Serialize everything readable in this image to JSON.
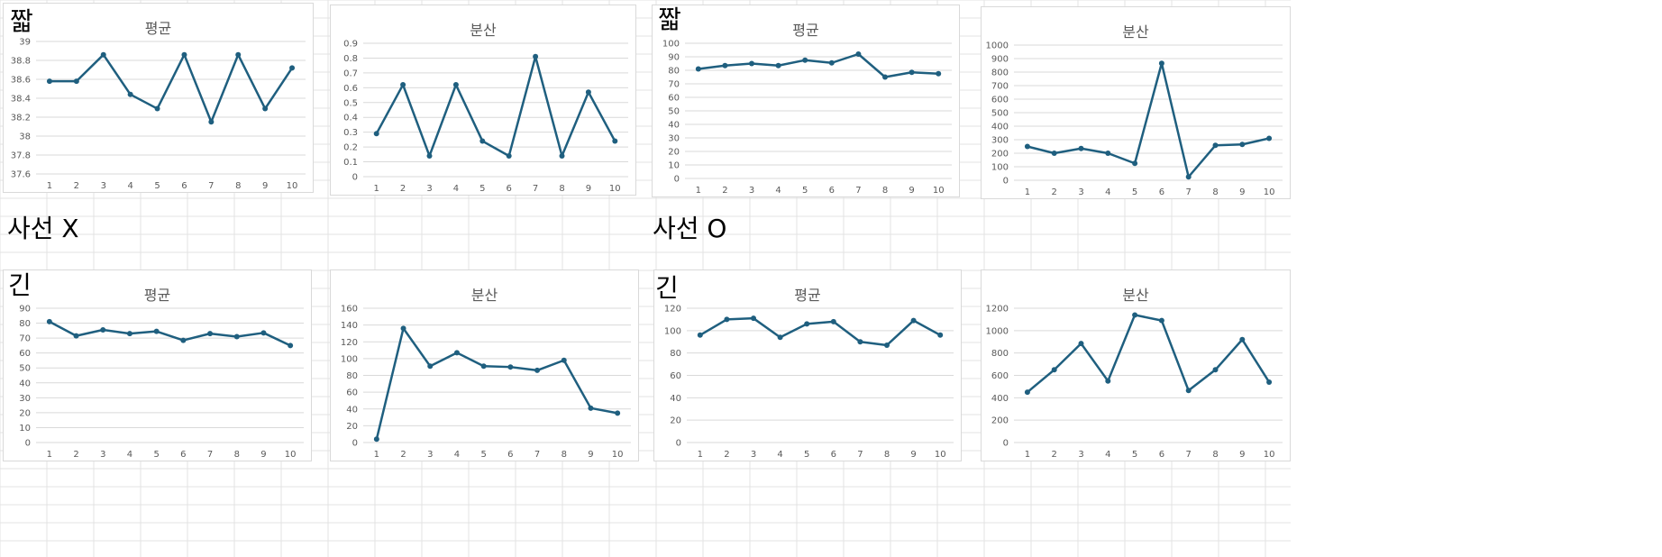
{
  "labels": {
    "short": "짧",
    "long": "긴",
    "no_dict": "사선 X",
    "with_dict": "사선 O"
  },
  "colors": {
    "series": "#1f5f7f",
    "gridline": "#d9d9d9",
    "axis_text": "#595959",
    "sheet_grid": "#e3e3e3"
  },
  "chart_data": [
    {
      "group": "사선 X",
      "length": "짧",
      "type": "line",
      "title": "평균",
      "categories": [
        "1",
        "2",
        "3",
        "4",
        "5",
        "6",
        "7",
        "8",
        "9",
        "10"
      ],
      "values": [
        38.58,
        38.58,
        38.86,
        38.44,
        38.29,
        38.86,
        38.15,
        38.86,
        38.29,
        38.72
      ],
      "ylim": [
        37.6,
        39
      ],
      "yticks": [
        "37.6",
        "37.8",
        "38",
        "38.2",
        "38.4",
        "38.6",
        "38.8",
        "39"
      ],
      "grid": true
    },
    {
      "group": "사선 X",
      "length": "짧",
      "type": "line",
      "title": "분산",
      "categories": [
        "1",
        "2",
        "3",
        "4",
        "5",
        "6",
        "7",
        "8",
        "9",
        "10"
      ],
      "values": [
        0.29,
        0.62,
        0.14,
        0.62,
        0.24,
        0.14,
        0.81,
        0.14,
        0.57,
        0.24
      ],
      "ylim": [
        0,
        0.9
      ],
      "yticks": [
        "0",
        "0.1",
        "0.2",
        "0.3",
        "0.4",
        "0.5",
        "0.6",
        "0.7",
        "0.8",
        "0.9"
      ],
      "grid": true
    },
    {
      "group": "사선 O",
      "length": "짧",
      "type": "line",
      "title": "평균",
      "categories": [
        "1",
        "2",
        "3",
        "4",
        "5",
        "6",
        "7",
        "8",
        "9",
        "10"
      ],
      "values": [
        81,
        83.5,
        85,
        83.5,
        87.5,
        85.5,
        92,
        75,
        78.5,
        77.5
      ],
      "ylim": [
        0,
        100
      ],
      "yticks": [
        "0",
        "10",
        "20",
        "30",
        "40",
        "50",
        "60",
        "70",
        "80",
        "90",
        "100"
      ],
      "grid": true
    },
    {
      "group": "사선 O",
      "length": "짧",
      "type": "line",
      "title": "분산",
      "categories": [
        "1",
        "2",
        "3",
        "4",
        "5",
        "6",
        "7",
        "8",
        "9",
        "10"
      ],
      "values": [
        250,
        200,
        235,
        200,
        125,
        865,
        25,
        258,
        265,
        310
      ],
      "ylim": [
        0,
        1000
      ],
      "yticks": [
        "0",
        "100",
        "200",
        "300",
        "400",
        "500",
        "600",
        "700",
        "800",
        "900",
        "1000"
      ],
      "grid": true
    },
    {
      "group": "사선 X",
      "length": "긴",
      "type": "line",
      "title": "평균",
      "categories": [
        "1",
        "2",
        "3",
        "4",
        "5",
        "6",
        "7",
        "8",
        "9",
        "10"
      ],
      "values": [
        81,
        71.5,
        75.5,
        73,
        74.5,
        68.5,
        73,
        71,
        73.5,
        65
      ],
      "ylim": [
        0,
        90
      ],
      "yticks": [
        "0",
        "10",
        "20",
        "30",
        "40",
        "50",
        "60",
        "70",
        "80",
        "90"
      ],
      "grid": true
    },
    {
      "group": "사선 X",
      "length": "긴",
      "type": "line",
      "title": "분산",
      "categories": [
        "1",
        "2",
        "3",
        "4",
        "5",
        "6",
        "7",
        "8",
        "9",
        "10"
      ],
      "values": [
        4,
        136,
        91,
        107,
        91,
        90,
        86,
        98,
        41,
        35
      ],
      "ylim": [
        0,
        160
      ],
      "yticks": [
        "0",
        "20",
        "40",
        "60",
        "80",
        "100",
        "120",
        "140",
        "160"
      ],
      "grid": true
    },
    {
      "group": "사선 O",
      "length": "긴",
      "type": "line",
      "title": "평균",
      "categories": [
        "1",
        "2",
        "3",
        "4",
        "5",
        "6",
        "7",
        "8",
        "9",
        "10"
      ],
      "values": [
        96,
        110,
        111,
        94,
        106,
        108,
        90,
        87,
        109,
        96
      ],
      "ylim": [
        0,
        120
      ],
      "yticks": [
        "0",
        "20",
        "40",
        "60",
        "80",
        "100",
        "120"
      ],
      "grid": true
    },
    {
      "group": "사선 O",
      "length": "긴",
      "type": "line",
      "title": "분산",
      "categories": [
        "1",
        "2",
        "3",
        "4",
        "5",
        "6",
        "7",
        "8",
        "9",
        "10"
      ],
      "values": [
        450,
        650,
        885,
        550,
        1140,
        1090,
        465,
        650,
        920,
        540
      ],
      "ylim": [
        0,
        1200
      ],
      "yticks": [
        "0",
        "200",
        "400",
        "600",
        "800",
        "1000",
        "1200"
      ],
      "grid": true
    }
  ]
}
